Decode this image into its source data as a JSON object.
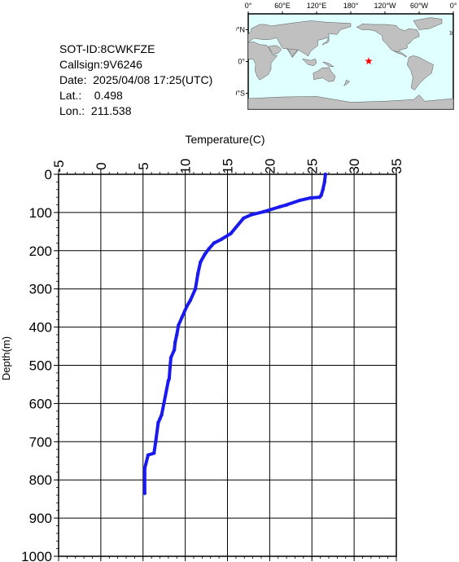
{
  "info": {
    "sot_id": "SOT-ID:8CWKFZE",
    "callsign": "Callsign:9V6246",
    "date": "Date:  2025/04/08 17:25(UTC)",
    "lat": "Lat.:    0.498",
    "lon": "Lon.:  211.538"
  },
  "map": {
    "top_labels": [
      "0°",
      "60°E",
      "120°E",
      "180°",
      "120°W",
      "60°W",
      "0°"
    ],
    "side_labels": [
      "60°N",
      "0°",
      "60°S"
    ],
    "marker": {
      "lat": 0.498,
      "lon": 211.538,
      "color": "#ff0000"
    },
    "land_color": "#c0c0c0",
    "ocean_color": "#e0ffff"
  },
  "chart_data": {
    "type": "line",
    "xlabel": "Temperature(C)",
    "ylabel": "Depth(m)",
    "xlim": [
      -5,
      35
    ],
    "ylim": [
      0,
      1000
    ],
    "y_inverted": true,
    "x_axis_position": "top",
    "x_ticks": [
      "-5",
      "0",
      "5",
      "10",
      "15",
      "20",
      "25",
      "30",
      "35"
    ],
    "y_ticks": [
      "0",
      "100",
      "200",
      "300",
      "400",
      "500",
      "600",
      "700",
      "800",
      "900",
      "1000"
    ],
    "grid": true,
    "series": [
      {
        "color": "#1a1aee",
        "x": [
          26.6,
          26.5,
          26.3,
          26.1,
          25.9,
          24.8,
          23.6,
          22.0,
          21.2,
          19.3,
          17.8,
          16.9,
          15.4,
          14.3,
          13.4,
          12.8,
          12.3,
          11.8,
          11.5,
          11.2,
          10.6,
          10.2,
          9.6,
          9.2,
          9.0,
          8.8,
          8.7,
          8.3,
          8.2,
          8.1,
          8.0,
          7.2,
          7.0,
          6.8,
          6.5,
          6.3,
          5.6,
          5.2,
          5.2
        ],
        "y": [
          0,
          20,
          40,
          55,
          60,
          62,
          68,
          80,
          85,
          98,
          106,
          115,
          155,
          170,
          180,
          195,
          210,
          230,
          260,
          300,
          330,
          345,
          375,
          395,
          420,
          440,
          460,
          480,
          505,
          535,
          540,
          630,
          640,
          650,
          700,
          730,
          735,
          770,
          835
        ]
      }
    ]
  }
}
